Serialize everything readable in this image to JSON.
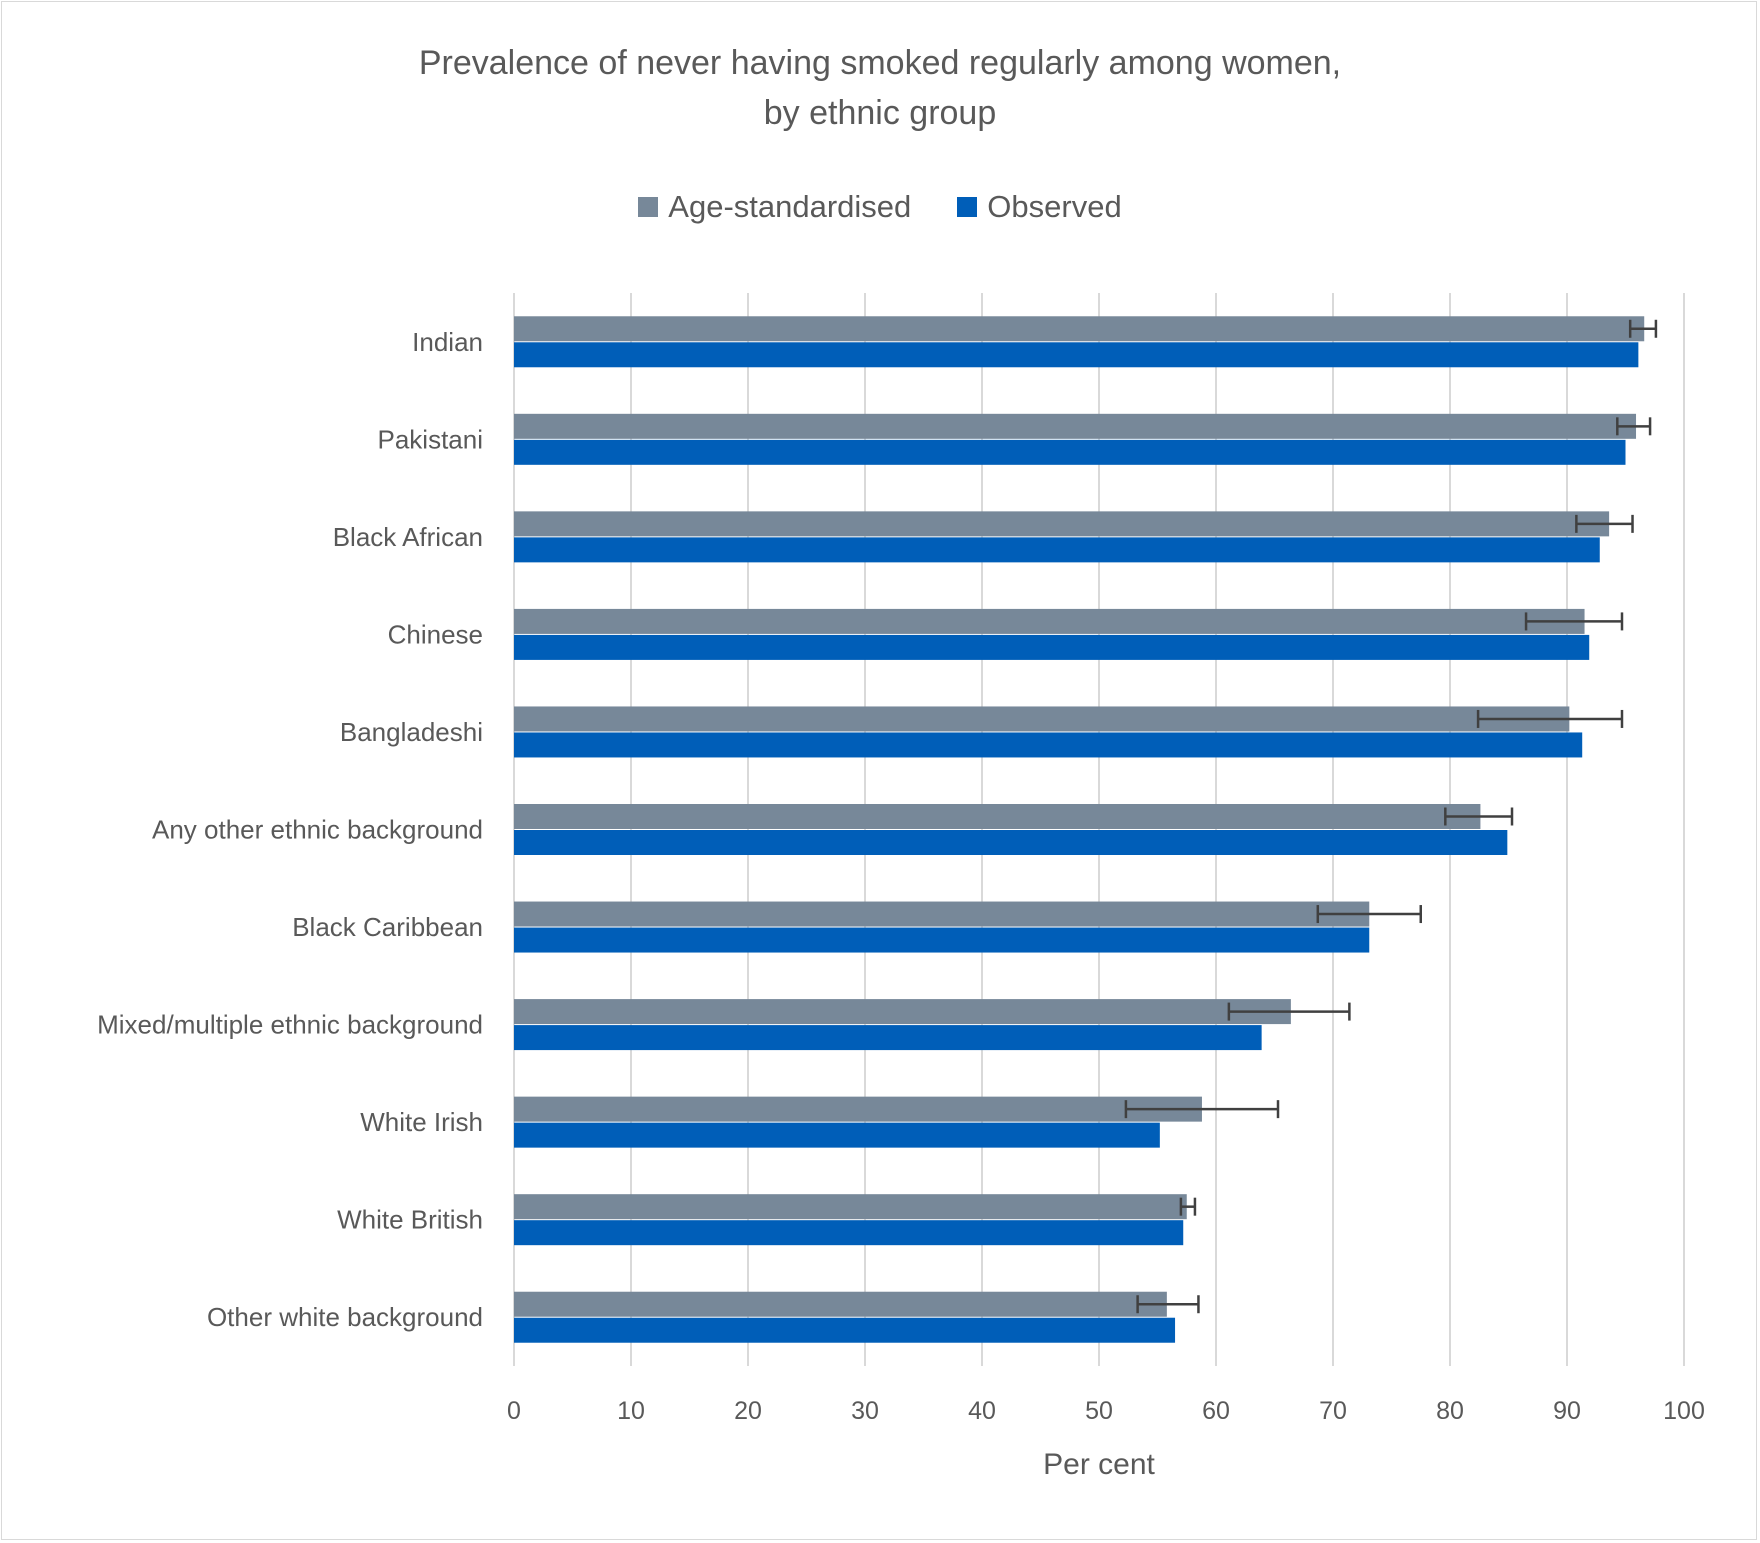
{
  "chart_data": {
    "type": "bar",
    "orientation": "horizontal",
    "title": [
      "Prevalence of never having smoked regularly among women,",
      "by ethnic group"
    ],
    "xlabel": "Per cent",
    "ylabel": "",
    "xlim": [
      0,
      100
    ],
    "xticks": [
      0,
      10,
      20,
      30,
      40,
      50,
      60,
      70,
      80,
      90,
      100
    ],
    "grid": "vertical",
    "legend_position": "top",
    "categories": [
      "Indian",
      "Pakistani",
      "Black African",
      "Chinese",
      "Bangladeshi",
      "Any other ethnic background",
      "Black Caribbean",
      "Mixed/multiple ethnic background",
      "White Irish",
      "White British",
      "Other white background"
    ],
    "series": [
      {
        "name": "Age-standardised",
        "color": "#778899",
        "values": [
          96.6,
          95.9,
          93.6,
          91.5,
          90.2,
          82.6,
          73.1,
          66.4,
          58.8,
          57.5,
          55.8
        ],
        "error_low": [
          95.4,
          94.3,
          90.8,
          86.5,
          82.4,
          79.6,
          68.7,
          61.1,
          52.3,
          57.0,
          53.3
        ],
        "error_high": [
          97.6,
          97.1,
          95.6,
          94.7,
          94.7,
          85.3,
          77.5,
          71.4,
          65.3,
          58.2,
          58.5
        ]
      },
      {
        "name": "Observed",
        "color": "#005eb8",
        "values": [
          96.1,
          95.0,
          92.8,
          91.9,
          91.3,
          84.9,
          73.1,
          63.9,
          55.2,
          57.2,
          56.5
        ]
      }
    ]
  },
  "colors": {
    "text": "#595959",
    "grid": "#d9d9d9",
    "error_bar": "#404040"
  }
}
